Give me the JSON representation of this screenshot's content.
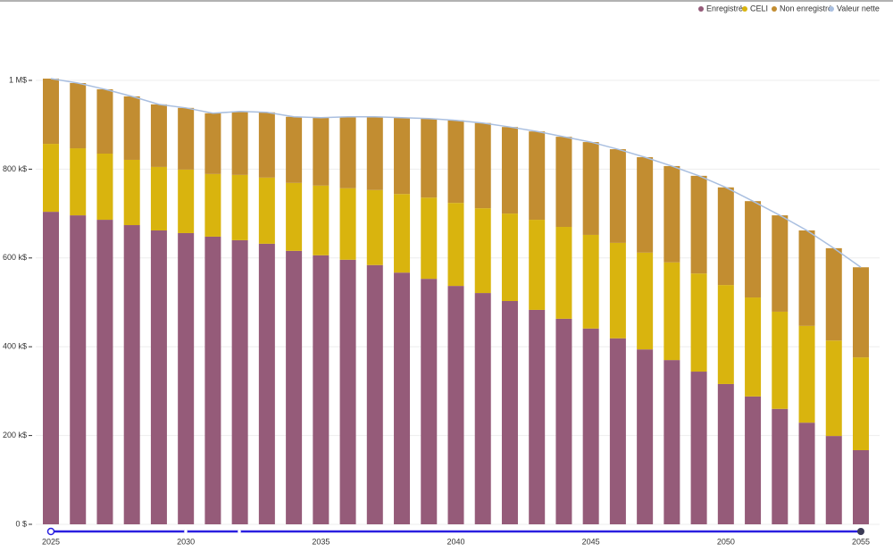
{
  "chart_data": {
    "type": "stacked-bar",
    "categories": [
      "2025",
      null,
      null,
      null,
      null,
      "2030",
      null,
      null,
      null,
      null,
      "2035",
      null,
      null,
      null,
      null,
      "2040",
      null,
      null,
      null,
      null,
      "2045",
      null,
      null,
      null,
      null,
      "2050",
      null,
      null,
      null,
      null,
      "2055"
    ],
    "series": [
      {
        "name": "Enregistré",
        "color": "#955b79",
        "values": [
          704,
          696,
          686,
          674,
          662,
          656,
          648,
          640,
          632,
          616,
          606,
          596,
          584,
          567,
          553,
          537,
          521,
          503,
          483,
          463,
          441,
          419,
          394,
          370,
          344,
          316,
          288,
          260,
          229,
          199,
          167
        ]
      },
      {
        "name": "CELI",
        "color": "#d9b40e",
        "values": [
          153,
          151,
          149,
          147,
          143,
          143,
          141,
          147,
          149,
          153,
          157,
          161,
          169,
          177,
          183,
          187,
          191,
          197,
          203,
          207,
          211,
          215,
          218,
          220,
          221,
          223,
          223,
          219,
          218,
          215,
          209
        ]
      },
      {
        "name": "Non enregistré",
        "color": "#c28d31",
        "values": [
          147,
          147,
          145,
          143,
          141,
          139,
          137,
          143,
          147,
          149,
          153,
          161,
          165,
          172,
          178,
          186,
          192,
          195,
          199,
          203,
          209,
          211,
          215,
          217,
          220,
          220,
          217,
          217,
          215,
          208,
          203
        ]
      },
      {
        "name": "Valeur nette",
        "color": "#a9bfe0",
        "type": "line",
        "values": [
          1004,
          994,
          980,
          964,
          946,
          938,
          926,
          930,
          928,
          918,
          916,
          918,
          918,
          916,
          914,
          910,
          904,
          895,
          885,
          873,
          861,
          845,
          827,
          807,
          785,
          759,
          728,
          696,
          662,
          622,
          579
        ]
      }
    ],
    "ylim": [
      0,
      1000
    ],
    "yticks": [
      {
        "value": 0,
        "label": "0 $"
      },
      {
        "value": 200,
        "label": "200 k$"
      },
      {
        "value": 400,
        "label": "400 k$"
      },
      {
        "value": 600,
        "label": "600 k$"
      },
      {
        "value": 800,
        "label": "800 k$"
      },
      {
        "value": 1000,
        "label": "1 M$"
      }
    ],
    "grid": true,
    "legend": "top-right"
  }
}
